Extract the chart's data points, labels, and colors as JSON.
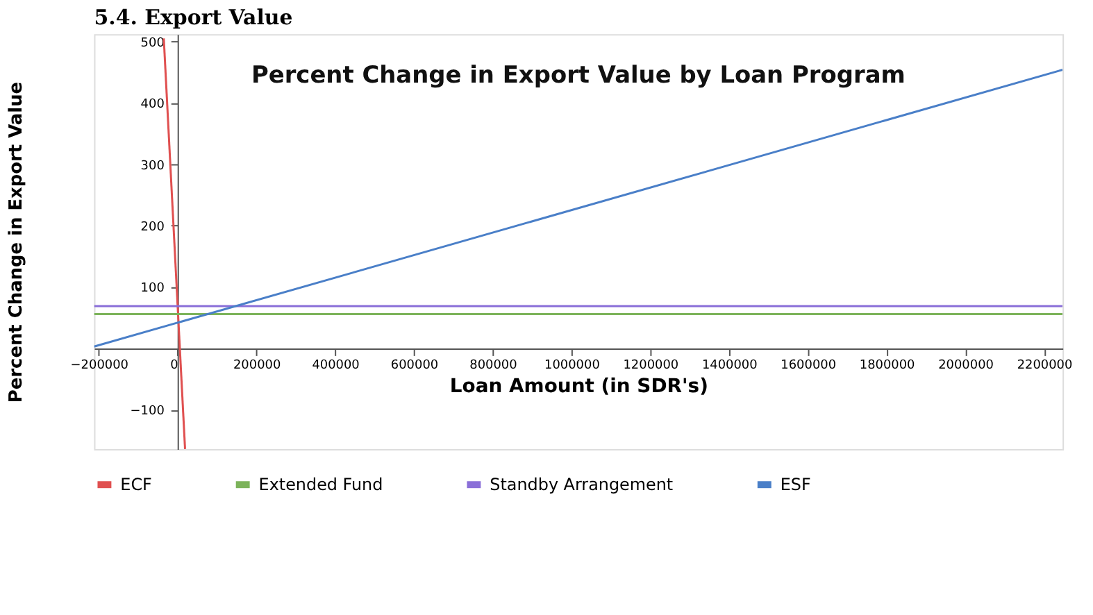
{
  "chart_data": {
    "type": "line",
    "title": "Percent Change in Export Value by Loan Program",
    "xlabel": "Loan Amount (in SDR's)",
    "ylabel": "Percent Change in Export Value",
    "annotations": [
      "5.4. Export Value"
    ],
    "xlim": [
      -212000,
      2247000
    ],
    "ylim": [
      -164,
      512
    ],
    "xticks": [
      -200000,
      0,
      200000,
      400000,
      600000,
      800000,
      1000000,
      1200000,
      1400000,
      1600000,
      1800000,
      2000000,
      2200000
    ],
    "yticks": [
      -100,
      100,
      200,
      300,
      400,
      500
    ],
    "grid": false,
    "legend": "bottom",
    "line_style": "solid",
    "marker": "none",
    "series": [
      {
        "name": "ECF",
        "color": "#e05050",
        "x": [
          -35000,
          19000
        ],
        "values": [
          505,
          -164
        ]
      },
      {
        "name": "Extended Fund",
        "color": "#7cb35a",
        "x": [
          -212000,
          2247000
        ],
        "values": [
          56,
          56
        ]
      },
      {
        "name": "Standby Arrangement",
        "color": "#8a6fd8",
        "x": [
          -212000,
          2247000
        ],
        "values": [
          69,
          69
        ]
      },
      {
        "name": "ESF",
        "color": "#4a7fc8",
        "x": [
          -212000,
          2247000
        ],
        "values": [
          3,
          454
        ]
      }
    ]
  }
}
